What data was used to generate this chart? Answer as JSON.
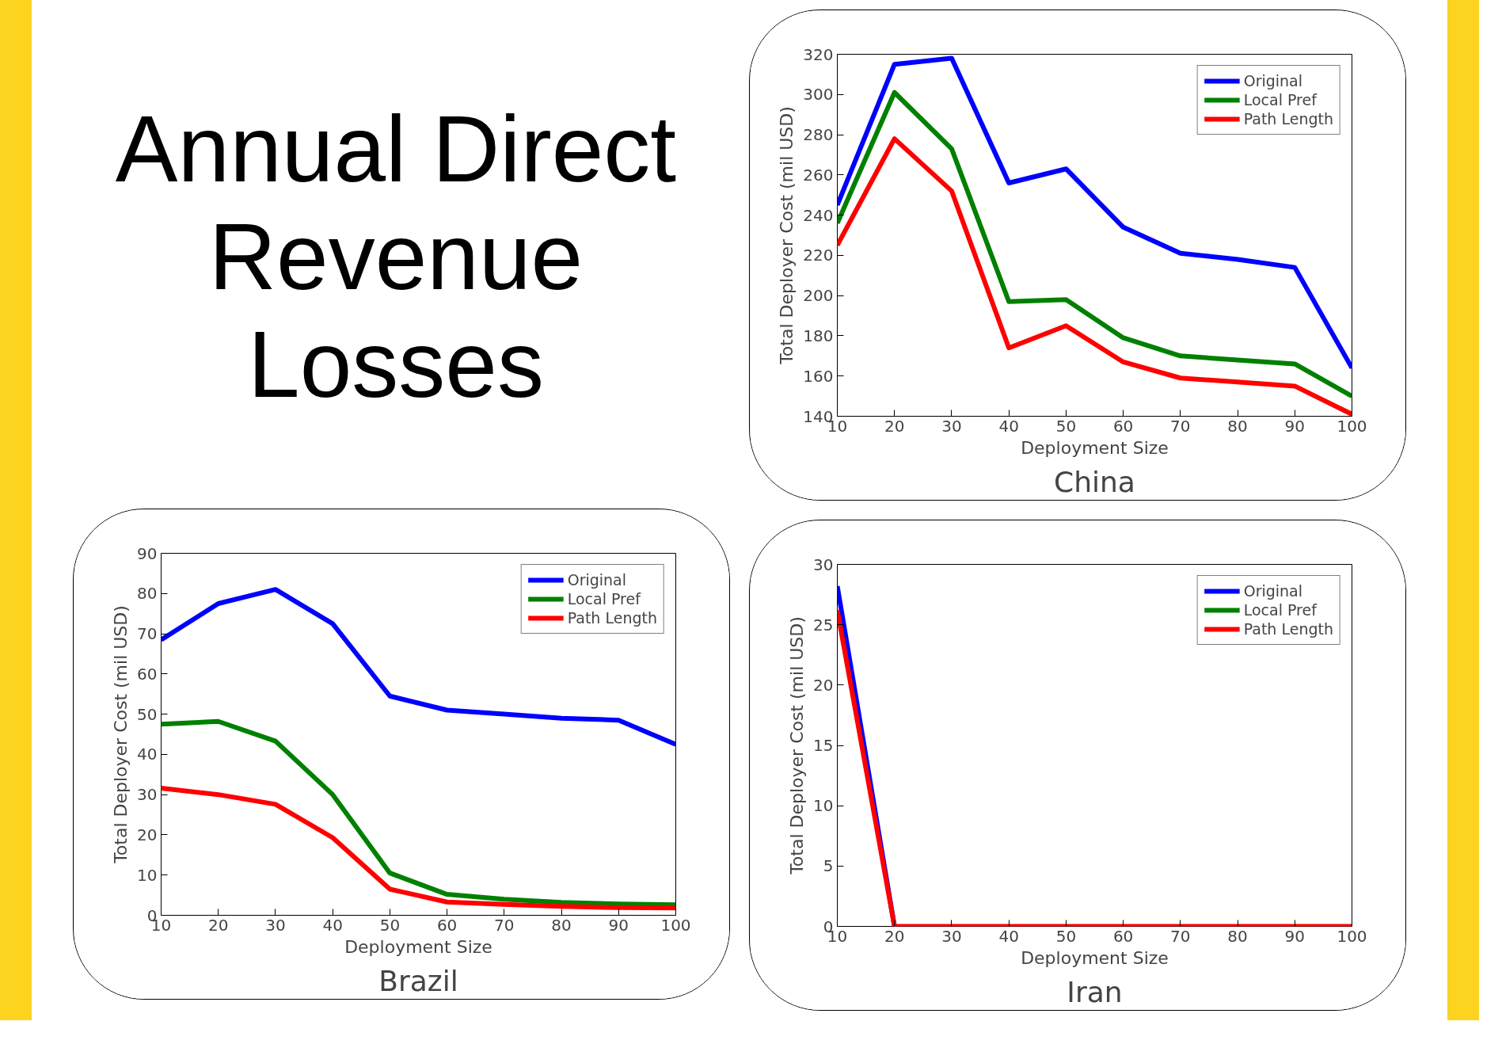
{
  "chart_data": [
    {
      "type": "other",
      "title": "Annual Direct Revenue Losses"
    },
    {
      "type": "line",
      "title": "China",
      "xlabel": "Deployment Size",
      "ylabel": "Total Deployer Cost (mil USD)",
      "x": [
        10,
        20,
        30,
        40,
        50,
        60,
        70,
        80,
        90,
        100
      ],
      "xlim": [
        10,
        100
      ],
      "xticks": [
        10,
        20,
        30,
        40,
        50,
        60,
        70,
        80,
        90,
        100
      ],
      "ylim": [
        140,
        320
      ],
      "yticks": [
        140,
        160,
        180,
        200,
        220,
        240,
        260,
        280,
        300,
        320
      ],
      "grid": false,
      "legend": "top right",
      "marker": "none",
      "line_style": "solid",
      "series": [
        {
          "name": "Original",
          "color": "#0000ff",
          "values": [
            245,
            315,
            318,
            256,
            263,
            234,
            221,
            218,
            214,
            164
          ]
        },
        {
          "name": "Local Pref",
          "color": "#008000",
          "values": [
            236,
            301,
            273,
            197,
            198,
            179,
            170,
            168,
            166,
            150
          ]
        },
        {
          "name": "Path Length",
          "color": "#ff0000",
          "values": [
            225,
            278,
            252,
            174,
            185,
            167,
            159,
            157,
            155,
            141
          ]
        }
      ]
    },
    {
      "type": "line",
      "title": "Brazil",
      "xlabel": "Deployment Size",
      "ylabel": "Total Deployer Cost (mil USD)",
      "x": [
        10,
        20,
        30,
        40,
        50,
        60,
        70,
        80,
        90,
        100
      ],
      "xlim": [
        10,
        100
      ],
      "xticks": [
        10,
        20,
        30,
        40,
        50,
        60,
        70,
        80,
        90,
        100
      ],
      "ylim": [
        0,
        90
      ],
      "yticks": [
        0,
        10,
        20,
        30,
        40,
        50,
        60,
        70,
        80,
        90
      ],
      "grid": false,
      "legend": "top right",
      "marker": "none",
      "line_style": "solid",
      "series": [
        {
          "name": "Original",
          "color": "#0000ff",
          "values": [
            68.5,
            77.5,
            81,
            72.5,
            54.5,
            51,
            50,
            49,
            48.5,
            42.5
          ]
        },
        {
          "name": "Local Pref",
          "color": "#008000",
          "values": [
            47.5,
            48.2,
            43.3,
            30,
            10.5,
            5.2,
            4,
            3.2,
            2.8,
            2.6
          ]
        },
        {
          "name": "Path Length",
          "color": "#ff0000",
          "values": [
            31.6,
            30,
            27.6,
            19.3,
            6.5,
            3.3,
            2.7,
            2.2,
            1.9,
            1.8
          ]
        }
      ]
    },
    {
      "type": "line",
      "title": "Iran",
      "xlabel": "Deployment Size",
      "ylabel": "Total Deployer Cost (mil USD)",
      "x": [
        10,
        20,
        30,
        40,
        50,
        60,
        70,
        80,
        90,
        100
      ],
      "xlim": [
        10,
        100
      ],
      "xticks": [
        10,
        20,
        30,
        40,
        50,
        60,
        70,
        80,
        90,
        100
      ],
      "ylim": [
        0,
        30
      ],
      "yticks": [
        0,
        5,
        10,
        15,
        20,
        25,
        30
      ],
      "grid": false,
      "legend": "top right",
      "marker": "none",
      "line_style": "solid",
      "series": [
        {
          "name": "Original",
          "color": "#0000ff",
          "values": [
            28.2,
            0,
            null,
            null,
            null,
            null,
            null,
            null,
            null,
            null
          ]
        },
        {
          "name": "Local Pref",
          "color": "#008000",
          "values": [
            null,
            null,
            null,
            null,
            null,
            null,
            null,
            null,
            null,
            null
          ]
        },
        {
          "name": "Path Length",
          "color": "#ff0000",
          "values": [
            26.2,
            0,
            0,
            0,
            0,
            0,
            0,
            0,
            0,
            0
          ]
        }
      ]
    }
  ]
}
